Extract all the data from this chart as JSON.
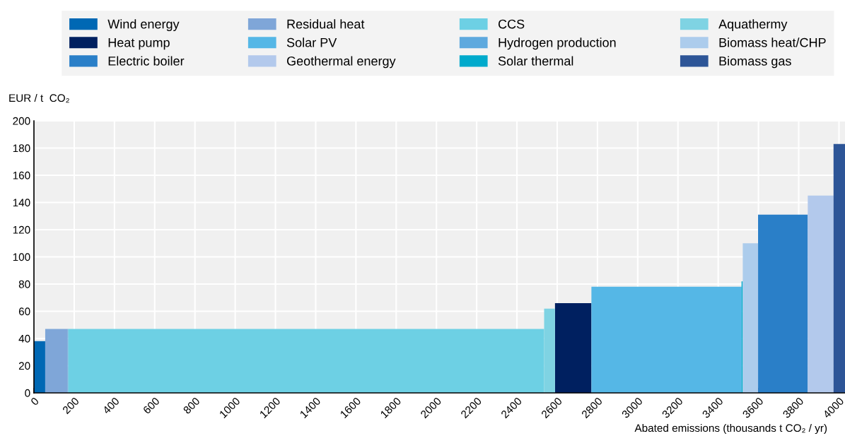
{
  "chart_data": {
    "type": "area",
    "ylabel": "EUR / t  CO₂",
    "xlabel": "Abated emissions (thousands t CO₂ / yr)",
    "xlim": [
      0,
      4030
    ],
    "xticks": [
      0,
      200,
      400,
      600,
      800,
      1000,
      1200,
      1400,
      1600,
      1800,
      2000,
      2200,
      2400,
      2600,
      2800,
      3000,
      3200,
      3400,
      3600,
      3800,
      4000
    ],
    "ylim": [
      0,
      200
    ],
    "yticks": [
      0,
      20,
      40,
      60,
      80,
      100,
      120,
      140,
      160,
      180,
      200
    ],
    "grid": true,
    "legend": "top",
    "series": [
      {
        "name": "Wind energy",
        "color": "#0068b4",
        "x": [
          0,
          56
        ],
        "values": [
          38,
          38
        ]
      },
      {
        "name": "Heat pump",
        "color": "#002060",
        "x": [
          2589,
          2770
        ],
        "values": [
          66,
          66
        ]
      },
      {
        "name": "Electric boiler",
        "color": "#2a7fc8",
        "x": [
          3598,
          3845
        ],
        "values": [
          131,
          131
        ]
      },
      {
        "name": "Residual heat",
        "color": "#7fa6d8",
        "x": [
          56,
          168
        ],
        "values": [
          47,
          47
        ]
      },
      {
        "name": "Solar PV",
        "color": "#55b7e6",
        "x": [
          2770,
          3516
        ],
        "values": [
          78,
          78
        ]
      },
      {
        "name": "Geothermal energy",
        "color": "#b3c9ec",
        "x": [
          3845,
          3973
        ],
        "values": [
          145,
          145
        ]
      },
      {
        "name": "CCS",
        "color": "#6dd0e4",
        "x": [
          170,
          2535
        ],
        "values": [
          47,
          47
        ]
      },
      {
        "name": "Hydrogen production",
        "color": "#5ea9de",
        "x": [
          168,
          170
        ],
        "values": [
          47,
          47
        ]
      },
      {
        "name": "Solar thermal",
        "color": "#00aacc",
        "x": [
          3516,
          3522
        ],
        "values": [
          82,
          82
        ]
      },
      {
        "name": "Aquathermy",
        "color": "#7fd3e3",
        "x": [
          2535,
          2589
        ],
        "values": [
          62,
          62
        ]
      },
      {
        "name": "Biomass heat/CHP",
        "color": "#acccec",
        "x": [
          3522,
          3598
        ],
        "values": [
          110,
          110
        ]
      },
      {
        "name": "Biomass gas",
        "color": "#2d5597",
        "x": [
          3973,
          4030
        ],
        "values": [
          183,
          183
        ]
      }
    ]
  }
}
